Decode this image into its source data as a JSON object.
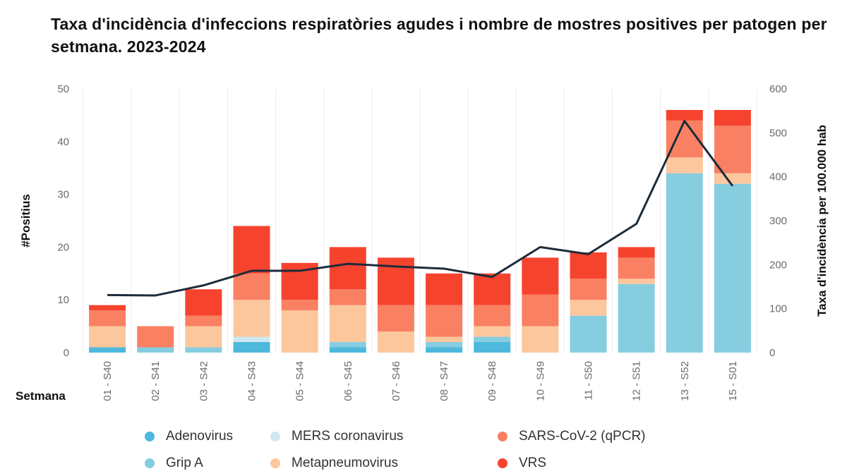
{
  "chart_data": {
    "type": "bar",
    "stacked": true,
    "title": "Taxa d'incidència d'infeccions respiratòries agudes i nombre de mostres positives per patogen per setmana. 2023-2024",
    "xlabel": "Setmana",
    "ylabel": "#Positius",
    "y2label": "Taxa d'incidència per 100.000 hab",
    "ylim": [
      0,
      50
    ],
    "y2lim": [
      0,
      600
    ],
    "yticks": [
      "0",
      "10",
      "20",
      "30",
      "40",
      "50"
    ],
    "y2ticks": [
      "0",
      "100",
      "200",
      "300",
      "400",
      "500",
      "600"
    ],
    "categories": [
      "01 - S40",
      "02 - S41",
      "03 - S42",
      "04 - S43",
      "05 - S44",
      "06 - S45",
      "07 - S46",
      "08 - S47",
      "09 - S48",
      "10 - S49",
      "11 - S50",
      "12 - S51",
      "13 - S52",
      "15 - S01"
    ],
    "series": [
      {
        "name": "Adenovirus",
        "color": "#4db8dc",
        "values": [
          1,
          0,
          0,
          2,
          0,
          1,
          0,
          1,
          2,
          0,
          0,
          0,
          0,
          0
        ]
      },
      {
        "name": "Grip A",
        "color": "#86cde0",
        "values": [
          0,
          1,
          1,
          0,
          0,
          1,
          0,
          1,
          1,
          0,
          7,
          13,
          34,
          32
        ]
      },
      {
        "name": "MERS coronavirus",
        "color": "#cfe8f2",
        "values": [
          0,
          0,
          0,
          1,
          0,
          0,
          0,
          0,
          0,
          0,
          0,
          0,
          0,
          0
        ]
      },
      {
        "name": "Metapneumovirus",
        "color": "#fcc79c",
        "values": [
          4,
          0,
          4,
          7,
          8,
          7,
          4,
          1,
          2,
          5,
          3,
          1,
          3,
          2
        ]
      },
      {
        "name": "SARS-CoV-2 (qPCR)",
        "color": "#f98062",
        "values": [
          3,
          4,
          2,
          5,
          2,
          3,
          5,
          6,
          4,
          6,
          4,
          4,
          7,
          9
        ]
      },
      {
        "name": "VRS",
        "color": "#f6432e",
        "values": [
          1,
          0,
          5,
          9,
          7,
          8,
          9,
          6,
          6,
          7,
          5,
          2,
          2,
          3
        ]
      }
    ],
    "line": {
      "name": "Taxa d'incidència per 100.000 hab",
      "color": "#1c2b3a",
      "values": [
        131,
        130,
        153,
        186,
        186,
        202,
        196,
        191,
        172,
        240,
        224,
        293,
        527,
        379
      ]
    },
    "grid": true,
    "legend_position": "bottom"
  }
}
